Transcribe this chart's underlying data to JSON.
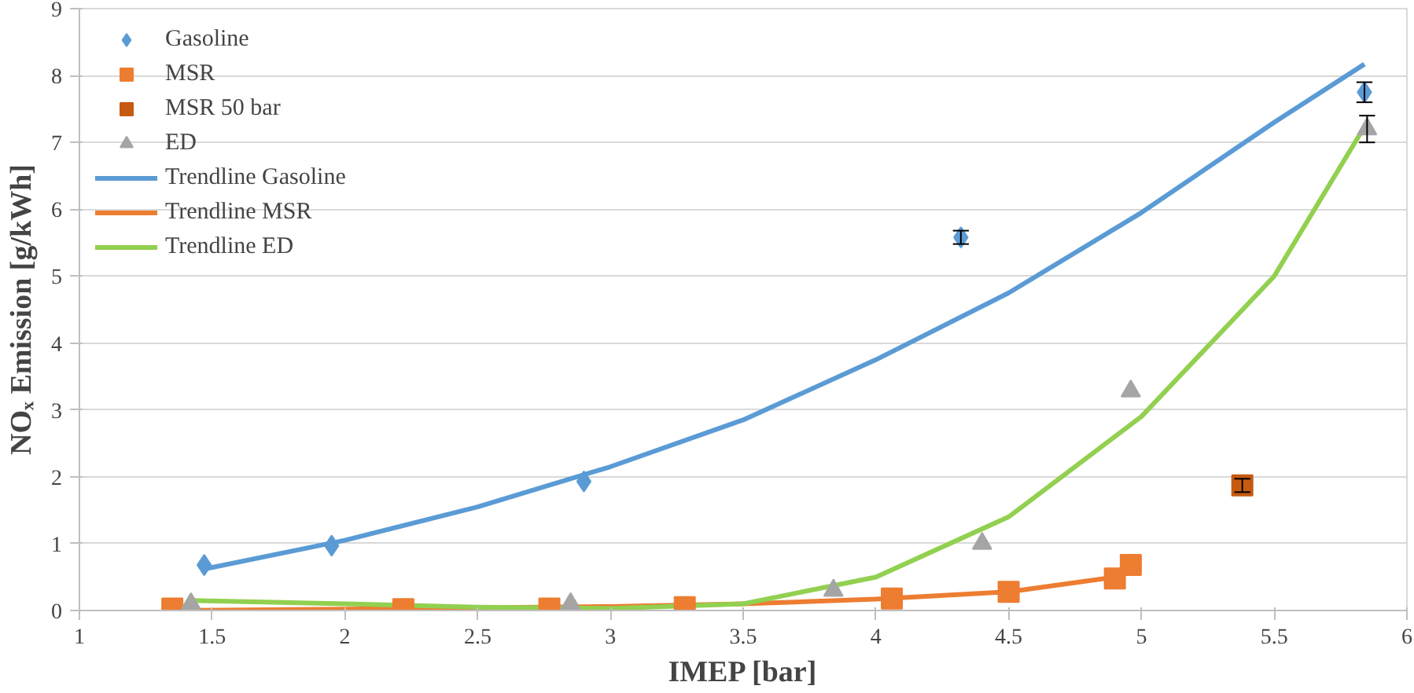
{
  "chart_data": {
    "type": "scatter",
    "xlabel": "IMEP [bar]",
    "ylabel": "NOₓ Emission [g/kWh]",
    "xlim": [
      1,
      6
    ],
    "ylim": [
      0,
      9
    ],
    "xticks": [
      1,
      1.5,
      2,
      2.5,
      3,
      3.5,
      4,
      4.5,
      5,
      5.5,
      6
    ],
    "yticks": [
      0,
      1,
      2,
      3,
      4,
      5,
      6,
      7,
      8,
      9
    ],
    "grid": "y",
    "legend": "top left",
    "series": [
      {
        "name": "Gasoline",
        "marker": "diamond",
        "color": "#5b9bd5",
        "x": [
          1.47,
          1.95,
          2.9,
          4.32,
          5.84
        ],
        "values": [
          0.68,
          0.97,
          1.93,
          5.58,
          7.75
        ],
        "errors": [
          null,
          null,
          null,
          0.1,
          0.15
        ]
      },
      {
        "name": "MSR",
        "marker": "square",
        "color": "#ed7d31",
        "x": [
          1.35,
          2.22,
          2.77,
          3.28,
          4.06,
          4.5,
          4.9,
          4.96
        ],
        "values": [
          0.03,
          0.02,
          0.03,
          0.05,
          0.18,
          0.28,
          0.48,
          0.68
        ]
      },
      {
        "name": "MSR 50 bar",
        "marker": "square",
        "color": "#c55a11",
        "x": [
          5.38
        ],
        "values": [
          1.87
        ],
        "errors": [
          0.1
        ]
      },
      {
        "name": "ED",
        "marker": "triangle",
        "color": "#a5a5a5",
        "x": [
          1.42,
          2.85,
          3.84,
          4.4,
          4.96,
          5.85
        ],
        "values": [
          0.1,
          0.1,
          0.3,
          1.0,
          3.28,
          7.2
        ],
        "errors": [
          null,
          null,
          null,
          null,
          null,
          0.2
        ]
      },
      {
        "name": "Trendline Gasoline",
        "type": "line",
        "color": "#5b9bd5",
        "x": [
          1.47,
          2,
          2.5,
          3,
          3.5,
          4,
          4.5,
          5,
          5.5,
          5.84
        ],
        "values": [
          0.62,
          1.05,
          1.55,
          2.15,
          2.85,
          3.75,
          4.75,
          5.95,
          7.3,
          8.17
        ]
      },
      {
        "name": "Trendline MSR",
        "type": "line",
        "color": "#ed7d31",
        "x": [
          1.35,
          2,
          2.5,
          3,
          3.5,
          4,
          4.5,
          4.9,
          4.96
        ],
        "values": [
          0.0,
          0.02,
          0.04,
          0.06,
          0.1,
          0.17,
          0.28,
          0.5,
          0.6
        ]
      },
      {
        "name": "Trendline ED",
        "type": "line",
        "color": "#92d050",
        "x": [
          1.42,
          2,
          2.5,
          3,
          3.5,
          4,
          4.5,
          5,
          5.5,
          5.85
        ],
        "values": [
          0.15,
          0.1,
          0.05,
          0.03,
          0.1,
          0.5,
          1.4,
          2.9,
          5.0,
          7.3
        ]
      }
    ]
  }
}
